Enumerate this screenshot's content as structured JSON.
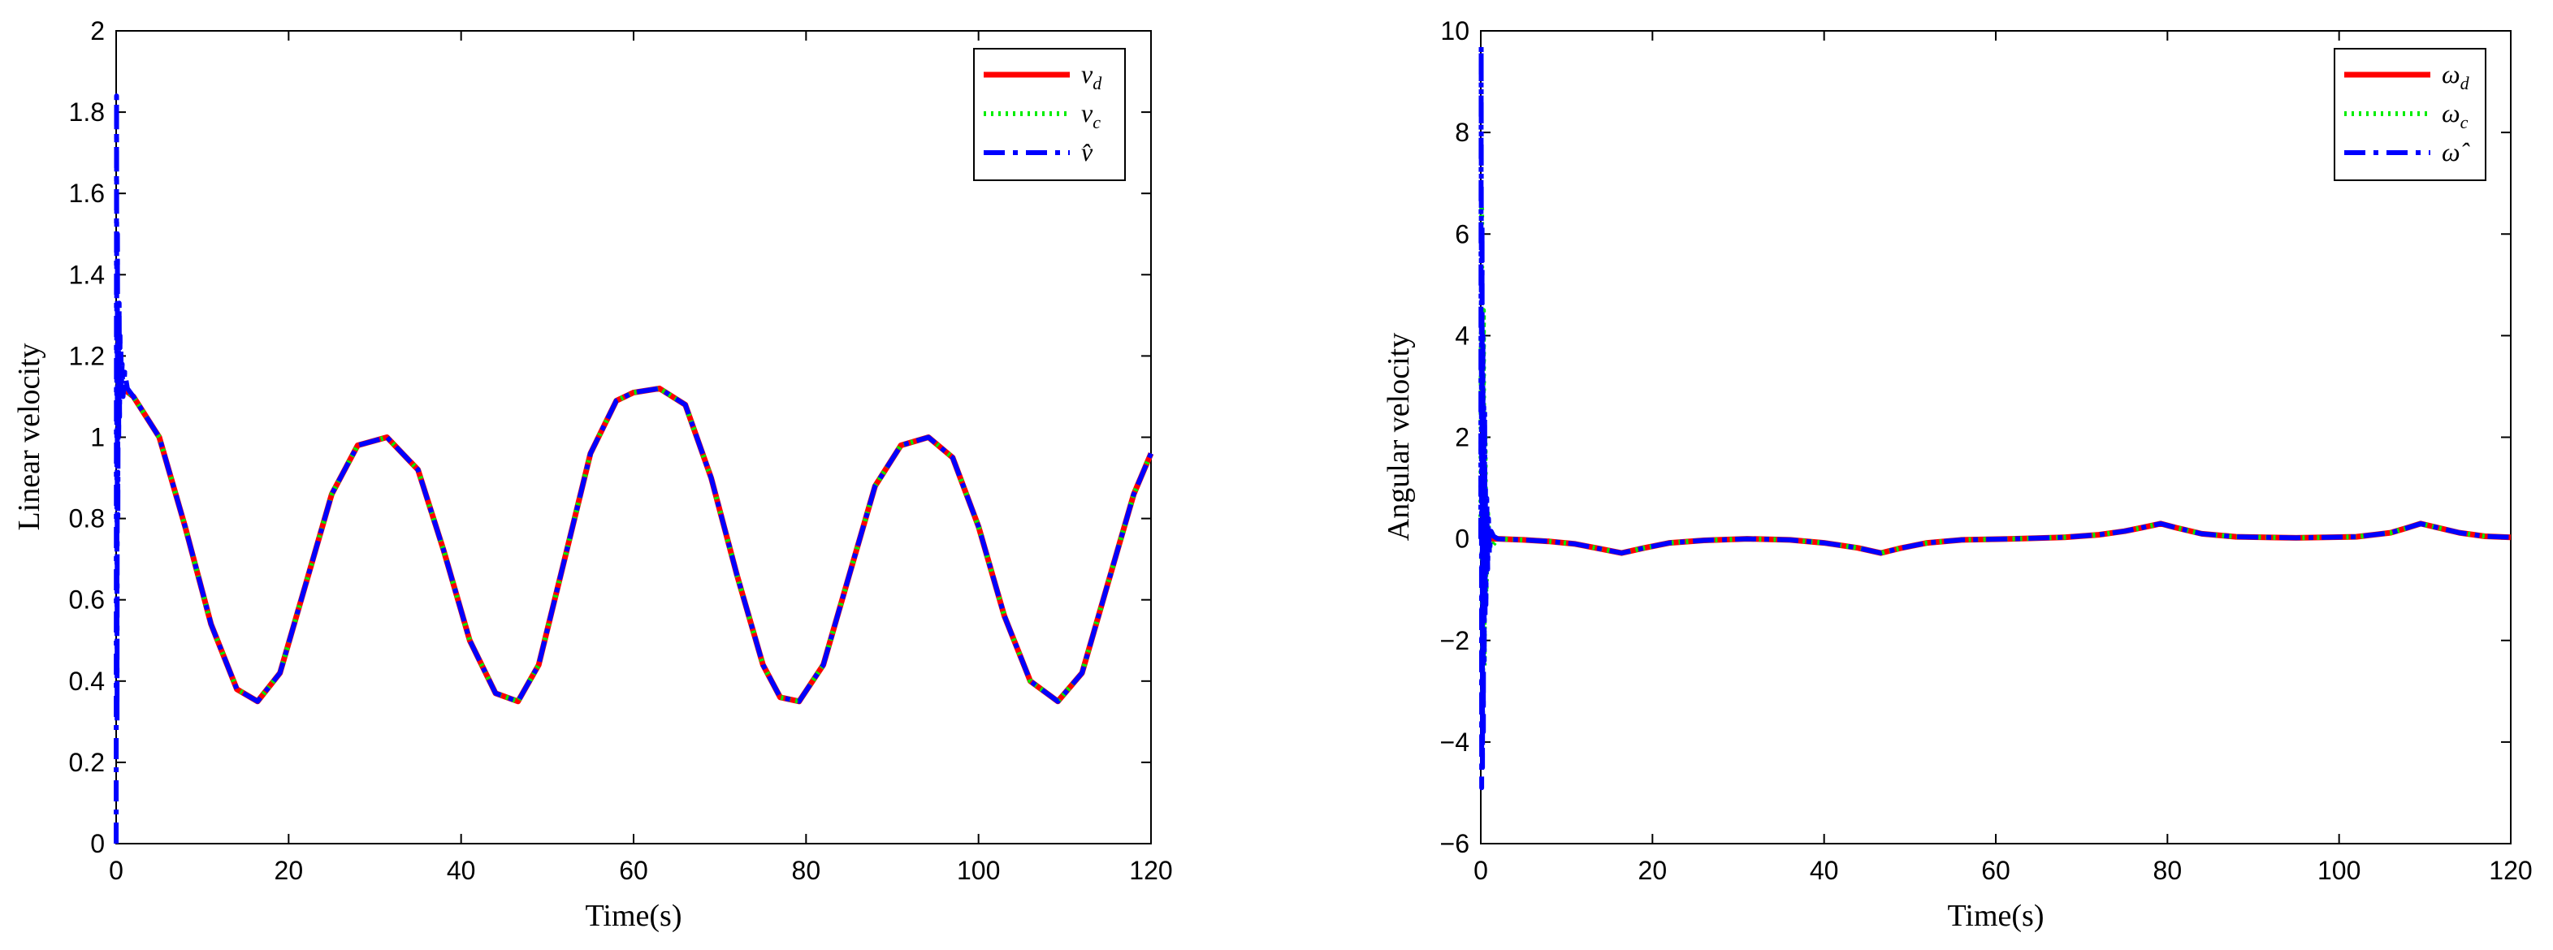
{
  "chart_data": [
    {
      "type": "line",
      "title": "",
      "xlabel": "Time(s)",
      "ylabel": "Linear velocity",
      "xlim": [
        0,
        120
      ],
      "ylim": [
        0,
        2
      ],
      "xticks": [
        "0",
        "20",
        "40",
        "60",
        "80",
        "100",
        "120"
      ],
      "yticks": [
        "0",
        "0.2",
        "0.4",
        "0.6",
        "0.8",
        "1",
        "1.2",
        "1.4",
        "1.6",
        "1.8",
        "2"
      ],
      "legend_position": "top-right",
      "grid": false,
      "series": [
        {
          "name": "vd",
          "legend_base": "v",
          "legend_sub": "d",
          "legend_hat": false,
          "color": "#ff0000",
          "style": "solid",
          "x": [
            0,
            0.8,
            2,
            5,
            8,
            11,
            14,
            16.4,
            19,
            22,
            25,
            28,
            31.4,
            35,
            38,
            41,
            44,
            46.6,
            49,
            52,
            55,
            58,
            60,
            63,
            66,
            69,
            72,
            75,
            77,
            79.2,
            82,
            85,
            88,
            91,
            94.2,
            97,
            100,
            103,
            106,
            109.2,
            112,
            115,
            118,
            120
          ],
          "y": [
            1.12,
            1.12,
            1.1,
            1.0,
            0.78,
            0.54,
            0.38,
            0.35,
            0.42,
            0.64,
            0.86,
            0.98,
            1.0,
            0.92,
            0.72,
            0.5,
            0.37,
            0.35,
            0.44,
            0.7,
            0.96,
            1.09,
            1.11,
            1.12,
            1.08,
            0.9,
            0.66,
            0.44,
            0.36,
            0.35,
            0.44,
            0.66,
            0.88,
            0.98,
            1.0,
            0.95,
            0.78,
            0.56,
            0.4,
            0.35,
            0.42,
            0.64,
            0.86,
            0.96
          ]
        },
        {
          "name": "vc",
          "legend_base": "v",
          "legend_sub": "c",
          "legend_hat": false,
          "color": "#00ee00",
          "style": "dotted",
          "x": [
            0,
            0.8,
            2,
            5,
            8,
            11,
            14,
            16.4,
            19,
            22,
            25,
            28,
            31.4,
            35,
            38,
            41,
            44,
            46.6,
            49,
            52,
            55,
            58,
            60,
            63,
            66,
            69,
            72,
            75,
            77,
            79.2,
            82,
            85,
            88,
            91,
            94.2,
            97,
            100,
            103,
            106,
            109.2,
            112,
            115,
            118,
            120
          ],
          "y": [
            1.12,
            1.12,
            1.1,
            1.0,
            0.78,
            0.54,
            0.38,
            0.35,
            0.42,
            0.64,
            0.86,
            0.98,
            1.0,
            0.92,
            0.72,
            0.5,
            0.37,
            0.35,
            0.44,
            0.7,
            0.96,
            1.09,
            1.11,
            1.12,
            1.08,
            0.9,
            0.66,
            0.44,
            0.36,
            0.35,
            0.44,
            0.66,
            0.88,
            0.98,
            1.0,
            0.95,
            0.78,
            0.56,
            0.4,
            0.35,
            0.42,
            0.64,
            0.86,
            0.96
          ]
        },
        {
          "name": "v̂",
          "legend_base": "v̂",
          "legend_sub": "",
          "legend_hat": true,
          "color": "#0000ff",
          "style": "dashdot",
          "x": [
            0,
            0.05,
            0.1,
            0.15,
            0.2,
            0.25,
            0.3,
            0.35,
            0.4,
            0.45,
            0.5,
            0.55,
            0.6,
            0.7,
            0.8,
            1.0,
            1.3,
            2,
            5,
            8,
            11,
            14,
            16.4,
            19,
            22,
            25,
            28,
            31.4,
            35,
            38,
            41,
            44,
            46.6,
            49,
            52,
            55,
            58,
            60,
            63,
            66,
            69,
            72,
            75,
            77,
            79.2,
            82,
            85,
            88,
            91,
            94.2,
            97,
            100,
            103,
            106,
            109.2,
            112,
            115,
            118,
            120
          ],
          "y": [
            0,
            1.84,
            0.3,
            1.5,
            0.8,
            1.3,
            1.0,
            1.33,
            1.05,
            1.25,
            1.1,
            1.22,
            1.12,
            1.18,
            1.1,
            1.16,
            1.12,
            1.1,
            1.0,
            0.78,
            0.54,
            0.38,
            0.35,
            0.42,
            0.64,
            0.86,
            0.98,
            1.0,
            0.92,
            0.72,
            0.5,
            0.37,
            0.35,
            0.44,
            0.7,
            0.96,
            1.09,
            1.11,
            1.12,
            1.08,
            0.9,
            0.66,
            0.44,
            0.36,
            0.35,
            0.44,
            0.66,
            0.88,
            0.98,
            1.0,
            0.95,
            0.78,
            0.56,
            0.4,
            0.35,
            0.42,
            0.64,
            0.86,
            0.96
          ]
        }
      ]
    },
    {
      "type": "line",
      "title": "",
      "xlabel": "Time(s)",
      "ylabel": "Angular velocity",
      "xlim": [
        0,
        120
      ],
      "ylim": [
        -6,
        10
      ],
      "xticks": [
        "0",
        "20",
        "40",
        "60",
        "80",
        "100",
        "120"
      ],
      "yticks": [
        "−6",
        "−4",
        "−2",
        "0",
        "2",
        "4",
        "6",
        "8",
        "10"
      ],
      "legend_position": "top-right",
      "grid": false,
      "series": [
        {
          "name": "ωd",
          "legend_base": "ω",
          "legend_sub": "d",
          "legend_hat": false,
          "color": "#ff0000",
          "style": "solid",
          "x": [
            0,
            2,
            5,
            8,
            11,
            14,
            16.4,
            19,
            22,
            26,
            31,
            36,
            40,
            44,
            46.6,
            49,
            52,
            56,
            62,
            68,
            72,
            75,
            77,
            79.2,
            81,
            84,
            88,
            95,
            102,
            106,
            108,
            109.5,
            111,
            114,
            117,
            120
          ],
          "y": [
            0,
            0.0,
            -0.02,
            -0.05,
            -0.1,
            -0.2,
            -0.28,
            -0.18,
            -0.08,
            -0.03,
            0.0,
            -0.02,
            -0.08,
            -0.18,
            -0.28,
            -0.18,
            -0.08,
            -0.02,
            0.0,
            0.03,
            0.08,
            0.15,
            0.22,
            0.3,
            0.22,
            0.1,
            0.04,
            0.02,
            0.04,
            0.12,
            0.22,
            0.3,
            0.24,
            0.12,
            0.05,
            0.03
          ]
        },
        {
          "name": "ωc",
          "legend_base": "ω",
          "legend_sub": "c",
          "legend_hat": false,
          "color": "#00ee00",
          "style": "dotted",
          "x": [
            0,
            0.1,
            0.2,
            0.3,
            0.4,
            0.5,
            0.6,
            0.8,
            1.0,
            2,
            5,
            8,
            11,
            14,
            16.4,
            19,
            22,
            26,
            31,
            36,
            40,
            44,
            46.6,
            49,
            52,
            56,
            62,
            68,
            72,
            75,
            77,
            79.2,
            81,
            84,
            88,
            95,
            102,
            106,
            108,
            109.5,
            111,
            114,
            117,
            120
          ],
          "y": [
            0,
            6.5,
            -3.5,
            4.5,
            -2.5,
            2.0,
            -1.2,
            0.5,
            -0.2,
            0.0,
            -0.02,
            -0.05,
            -0.1,
            -0.2,
            -0.28,
            -0.18,
            -0.08,
            -0.03,
            0.0,
            -0.02,
            -0.08,
            -0.18,
            -0.28,
            -0.18,
            -0.08,
            -0.02,
            0.0,
            0.03,
            0.08,
            0.15,
            0.22,
            0.3,
            0.22,
            0.1,
            0.04,
            0.02,
            0.04,
            0.12,
            0.22,
            0.3,
            0.24,
            0.12,
            0.05,
            0.03
          ]
        },
        {
          "name": "ω̂",
          "legend_base": "ω̂",
          "legend_sub": "",
          "legend_hat": true,
          "color": "#0000ff",
          "style": "dashdot",
          "x": [
            0,
            0.05,
            0.1,
            0.15,
            0.2,
            0.25,
            0.3,
            0.35,
            0.4,
            0.45,
            0.5,
            0.55,
            0.6,
            0.7,
            0.8,
            0.9,
            1.0,
            1.2,
            1.5,
            2,
            5,
            8,
            11,
            14,
            16.4,
            19,
            22,
            26,
            31,
            36,
            40,
            44,
            46.6,
            49,
            52,
            56,
            62,
            68,
            72,
            75,
            77,
            79.2,
            81,
            84,
            88,
            95,
            102,
            106,
            108,
            109.5,
            111,
            114,
            117,
            120
          ],
          "y": [
            0,
            9.7,
            -4.9,
            6.2,
            -4.5,
            4.0,
            -3.8,
            2.6,
            -2.4,
            2.5,
            -1.5,
            1.0,
            -1.3,
            0.8,
            -0.6,
            0.4,
            -0.3,
            0.15,
            0.05,
            0.0,
            -0.02,
            -0.05,
            -0.1,
            -0.2,
            -0.28,
            -0.18,
            -0.08,
            -0.03,
            0.0,
            -0.02,
            -0.08,
            -0.18,
            -0.28,
            -0.18,
            -0.08,
            -0.02,
            0.0,
            0.03,
            0.08,
            0.15,
            0.22,
            0.3,
            0.22,
            0.1,
            0.04,
            0.02,
            0.04,
            0.12,
            0.22,
            0.3,
            0.24,
            0.12,
            0.05,
            0.03
          ]
        }
      ]
    }
  ]
}
